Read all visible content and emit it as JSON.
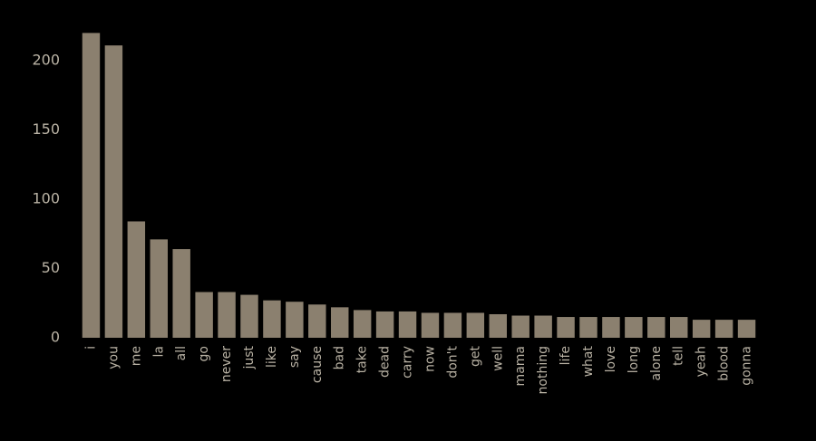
{
  "chart_data": {
    "type": "bar",
    "categories": [
      "i",
      "you",
      "me",
      "la",
      "all",
      "go",
      "never",
      "just",
      "like",
      "say",
      "cause",
      "bad",
      "take",
      "dead",
      "carry",
      "now",
      "don't",
      "get",
      "well",
      "mama",
      "nothing",
      "life",
      "what",
      "love",
      "long",
      "alone",
      "tell",
      "yeah",
      "blood",
      "gonna"
    ],
    "values": [
      220,
      211,
      84,
      71,
      64,
      33,
      33,
      31,
      27,
      26,
      24,
      22,
      20,
      19,
      19,
      18,
      18,
      18,
      17,
      16,
      16,
      15,
      15,
      15,
      15,
      15,
      15,
      13,
      13,
      13
    ],
    "color": "#8b806f",
    "ylim": [
      0,
      220
    ],
    "yticks": [
      0,
      50,
      100,
      150,
      200
    ]
  }
}
